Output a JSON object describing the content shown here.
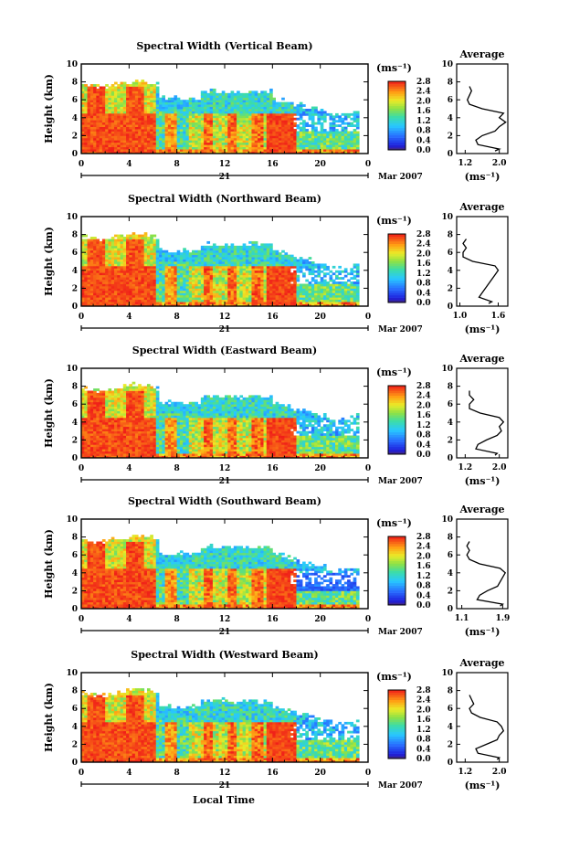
{
  "figure": {
    "xlabel": "Local Time",
    "date_label": "Mar 2007",
    "day_label": "21",
    "colorbar_unit": "(ms⁻¹)",
    "colorbar_ticks": [
      "0.0",
      "0.4",
      "0.8",
      "1.2",
      "1.6",
      "2.0",
      "2.4",
      "2.8"
    ],
    "avg_title": "Average",
    "avg_xlabel": "(ms⁻¹)"
  },
  "chart_data": [
    {
      "type": "heatmap",
      "title": "Spectral Width (Vertical Beam)",
      "ylabel": "Height (km)",
      "xticks": [
        "0",
        "4",
        "8",
        "12",
        "16",
        "20",
        "0"
      ],
      "yticks": [
        "0",
        "2",
        "4",
        "6",
        "8",
        "10"
      ],
      "xlim": [
        0,
        24
      ],
      "ylim": [
        0,
        10
      ],
      "colorbar_range": [
        0.0,
        2.8
      ],
      "average_profile": {
        "xticks": [
          "1.2",
          "2.0"
        ],
        "xlim": [
          1.0,
          2.2
        ],
        "height": [
          0.3,
          0.5,
          1.0,
          1.5,
          2.0,
          2.5,
          3.0,
          3.5,
          4.0,
          4.5,
          5.0,
          5.5,
          6.0,
          6.5,
          7.0,
          7.5
        ],
        "value": [
          1.9,
          2.0,
          1.5,
          1.45,
          1.6,
          1.9,
          2.0,
          2.15,
          2.0,
          2.1,
          1.6,
          1.3,
          1.25,
          1.3,
          1.35,
          1.3
        ]
      }
    },
    {
      "type": "heatmap",
      "title": "Spectral Width (Northward Beam)",
      "ylabel": "Height (km)",
      "xticks": [
        "0",
        "4",
        "8",
        "12",
        "16",
        "20",
        "0"
      ],
      "yticks": [
        "0",
        "2",
        "4",
        "6",
        "8",
        "10"
      ],
      "xlim": [
        0,
        24
      ],
      "ylim": [
        0,
        10
      ],
      "colorbar_range": [
        0.0,
        2.8
      ],
      "average_profile": {
        "xticks": [
          "1.0",
          "1.6"
        ],
        "xlim": [
          0.95,
          1.75
        ],
        "height": [
          0.3,
          0.5,
          1.0,
          1.5,
          2.0,
          2.5,
          3.0,
          3.5,
          4.0,
          4.5,
          5.0,
          5.5,
          6.0,
          6.5,
          7.0,
          7.5
        ],
        "value": [
          1.45,
          1.5,
          1.3,
          1.35,
          1.4,
          1.45,
          1.5,
          1.55,
          1.6,
          1.55,
          1.2,
          1.05,
          1.05,
          1.1,
          1.05,
          1.1
        ]
      }
    },
    {
      "type": "heatmap",
      "title": "Spectral Width (Eastward Beam)",
      "ylabel": "Height (km)",
      "xticks": [
        "0",
        "4",
        "8",
        "12",
        "16",
        "20",
        "0"
      ],
      "yticks": [
        "0",
        "2",
        "4",
        "6",
        "8",
        "10"
      ],
      "xlim": [
        0,
        24
      ],
      "ylim": [
        0,
        10
      ],
      "colorbar_range": [
        0.0,
        2.8
      ],
      "average_profile": {
        "xticks": [
          "1.2",
          "2.0"
        ],
        "xlim": [
          1.0,
          2.2
        ],
        "height": [
          0.3,
          0.5,
          1.0,
          1.5,
          2.0,
          2.5,
          3.0,
          3.5,
          4.0,
          4.5,
          5.0,
          5.5,
          6.0,
          6.5,
          7.0,
          7.5
        ],
        "value": [
          1.9,
          1.95,
          1.45,
          1.5,
          1.7,
          1.95,
          2.05,
          2.0,
          2.1,
          2.0,
          1.55,
          1.3,
          1.3,
          1.4,
          1.3,
          1.3
        ]
      }
    },
    {
      "type": "heatmap",
      "title": "Spectral Width (Southward Beam)",
      "ylabel": "Height (km)",
      "xticks": [
        "0",
        "4",
        "8",
        "12",
        "16",
        "20",
        "0"
      ],
      "yticks": [
        "0",
        "2",
        "4",
        "6",
        "8",
        "10"
      ],
      "xlim": [
        0,
        24
      ],
      "ylim": [
        0,
        10
      ],
      "colorbar_range": [
        0.0,
        2.8
      ],
      "average_profile": {
        "xticks": [
          "1.1",
          "1.9"
        ],
        "xlim": [
          1.0,
          2.0
        ],
        "height": [
          0.3,
          0.5,
          1.0,
          1.5,
          2.0,
          2.5,
          3.0,
          3.5,
          4.0,
          4.5,
          5.0,
          5.5,
          6.0,
          6.5,
          7.0,
          7.5
        ],
        "value": [
          1.85,
          1.9,
          1.4,
          1.45,
          1.6,
          1.8,
          1.85,
          1.9,
          1.95,
          1.85,
          1.45,
          1.25,
          1.2,
          1.25,
          1.2,
          1.25
        ]
      }
    },
    {
      "type": "heatmap",
      "title": "Spectral Width (Westward Beam)",
      "ylabel": "Height (km)",
      "xticks": [
        "0",
        "4",
        "8",
        "12",
        "16",
        "20",
        "0"
      ],
      "yticks": [
        "0",
        "2",
        "4",
        "6",
        "8",
        "10"
      ],
      "xlim": [
        0,
        24
      ],
      "ylim": [
        0,
        10
      ],
      "colorbar_range": [
        0.0,
        2.8
      ],
      "average_profile": {
        "xticks": [
          "1.2",
          "2.0"
        ],
        "xlim": [
          1.0,
          2.2
        ],
        "height": [
          0.3,
          0.5,
          1.0,
          1.5,
          2.0,
          2.5,
          3.0,
          3.5,
          4.0,
          4.5,
          5.0,
          5.5,
          6.0,
          6.5,
          7.0,
          7.5
        ],
        "value": [
          1.95,
          2.0,
          1.5,
          1.45,
          1.7,
          1.95,
          2.0,
          2.1,
          2.05,
          1.95,
          1.55,
          1.35,
          1.3,
          1.4,
          1.35,
          1.3
        ]
      }
    }
  ]
}
